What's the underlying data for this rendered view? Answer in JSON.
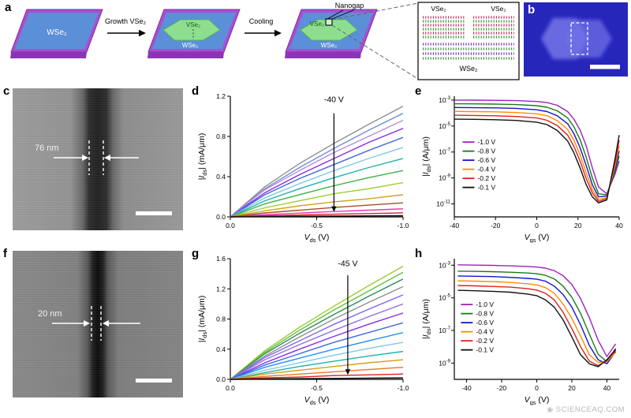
{
  "figure": {
    "panel_labels": {
      "a": "a",
      "b": "b",
      "c": "c",
      "d": "d",
      "e": "e",
      "f": "f",
      "g": "g",
      "h": "h"
    },
    "panel_a": {
      "substrate1": "WSe₂",
      "growth_arrow": "Growth VSe₂",
      "hex2_vse2": "VSe₂",
      "hex2_wse2": "WSe₂",
      "cooling_arrow": "Cooling",
      "nanogap": "Nanogap",
      "hex3_vse2": "VSe₂",
      "hex3_wse2": "WSe₂",
      "inset_vse2_left": "VSe₂",
      "inset_vse2_right": "VSe₂",
      "inset_wse2": "WSe₂"
    },
    "panel_c": {
      "measurement": "76 nm"
    },
    "panel_f": {
      "measurement": "20 nm"
    },
    "watermark": "SCIENCEAQ.COM"
  },
  "chart_data": [
    {
      "id": "d",
      "type": "line",
      "xlabel": {
        "pre": "V",
        "sub": "ds",
        "post": " (V)"
      },
      "ylabel": {
        "pre": "|I",
        "sub": "ds",
        "post": "| (mA/μm)"
      },
      "yscale": "linear",
      "xlim": [
        0,
        -1.0
      ],
      "ylim": [
        0,
        1.2
      ],
      "xticks": [
        0,
        -0.5,
        -1.0
      ],
      "xtick_labels": [
        "0.0",
        "-0.5",
        "-1.0"
      ],
      "yticks": [
        0,
        0.4,
        0.8,
        1.2
      ],
      "ytick_labels": [
        "0.0",
        "0.4",
        "0.8",
        "1.2"
      ],
      "x": [
        0,
        -0.2,
        -0.4,
        -0.6,
        -0.8,
        -1.0
      ],
      "series": [
        {
          "color": "#909090",
          "values": [
            0,
            0.3,
            0.53,
            0.73,
            0.92,
            1.1
          ]
        },
        {
          "color": "#6e8fd4",
          "values": [
            0,
            0.28,
            0.49,
            0.68,
            0.86,
            1.03
          ]
        },
        {
          "color": "#b48ce0",
          "values": [
            0,
            0.27,
            0.46,
            0.64,
            0.8,
            0.96
          ]
        },
        {
          "color": "#8a2be2",
          "values": [
            0,
            0.24,
            0.42,
            0.58,
            0.74,
            0.88
          ]
        },
        {
          "color": "#4169e1",
          "values": [
            0,
            0.22,
            0.38,
            0.52,
            0.66,
            0.79
          ]
        },
        {
          "color": "#7ec8e8",
          "values": [
            0,
            0.19,
            0.33,
            0.46,
            0.58,
            0.69
          ]
        },
        {
          "color": "#20b2aa",
          "values": [
            0,
            0.16,
            0.28,
            0.39,
            0.49,
            0.58
          ]
        },
        {
          "color": "#3cb043",
          "values": [
            0,
            0.13,
            0.22,
            0.31,
            0.39,
            0.46
          ]
        },
        {
          "color": "#9acd32",
          "values": [
            0,
            0.09,
            0.16,
            0.23,
            0.28,
            0.34
          ]
        },
        {
          "color": "#d4a017",
          "values": [
            0,
            0.06,
            0.11,
            0.15,
            0.18,
            0.22
          ]
        },
        {
          "color": "#a0522d",
          "values": [
            0,
            0.039,
            0.067,
            0.093,
            0.117,
            0.14
          ]
        },
        {
          "color": "#e838b8",
          "values": [
            0,
            0.022,
            0.038,
            0.053,
            0.067,
            0.08
          ]
        },
        {
          "color": "#e02020",
          "values": [
            0,
            0.011,
            0.019,
            0.027,
            0.033,
            0.04
          ]
        },
        {
          "color": "#111111",
          "values": [
            0,
            0.003,
            0.006,
            0.008,
            0.01,
            0.012
          ]
        }
      ],
      "annotation": {
        "text": "-40 V",
        "x": -0.6,
        "text_y": 1.14,
        "arrow_from": 1.03,
        "arrow_to": 0.05
      }
    },
    {
      "id": "e",
      "type": "line",
      "xlabel": {
        "pre": "V",
        "sub": "gs",
        "post": " (V)"
      },
      "ylabel": {
        "pre": "|I",
        "sub": "ds",
        "post": "| (A/μm)"
      },
      "yscale": "log",
      "xlim": [
        -40,
        40
      ],
      "ylim_exp": [
        -12,
        -2.7
      ],
      "xticks": [
        -40,
        -20,
        0,
        20,
        40
      ],
      "xtick_labels": [
        "-40",
        "-20",
        "0",
        "20",
        "40"
      ],
      "ytick_exps": [
        -3,
        -5,
        -7,
        -9,
        -11
      ],
      "x": [
        -40,
        -30,
        -20,
        -10,
        0,
        5,
        10,
        15,
        18,
        21,
        24,
        27,
        30,
        34,
        38,
        40
      ],
      "series": [
        {
          "label": "-1.0 V",
          "color": "#a020c0",
          "values": [
            0.001,
            0.00099,
            0.00096,
            0.00091,
            0.00078,
            0.00064,
            0.0004,
            0.00013,
            3.5e-05,
            5e-06,
            3e-07,
            6e-09,
            2e-10,
            6e-11,
            2e-09,
            2e-08
          ]
        },
        {
          "label": "-0.8 V",
          "color": "#1a7a1a",
          "values": [
            0.00052,
            0.00051,
            0.00049,
            0.00045,
            0.00037,
            0.00028,
            0.00015,
            4.2e-05,
            9e-06,
            9e-07,
            4e-08,
            1e-09,
            6e-11,
            5e-11,
            3e-09,
            5e-08
          ]
        },
        {
          "label": "-0.6 V",
          "color": "#1414cc",
          "values": [
            0.00027,
            0.00026,
            0.00025,
            0.00023,
            0.00018,
            0.00013,
            6.2e-05,
            1.5e-05,
            2.7e-06,
            2.2e-07,
            9e-09,
            3e-10,
            3.5e-11,
            4e-11,
            5e-09,
            1.2e-07
          ]
        },
        {
          "label": "-0.4 V",
          "color": "#ff8c00",
          "values": [
            0.000135,
            0.00013,
            0.000125,
            0.00011,
            8.8e-05,
            6.2e-05,
            2.6e-05,
            5.5e-06,
            8.5e-07,
            6.5e-08,
            2.5e-09,
            1.3e-10,
            2.2e-11,
            3e-11,
            8e-09,
            3e-07
          ]
        },
        {
          "label": "-0.2 V",
          "color": "#e02020",
          "values": [
            6.8e-05,
            6.6e-05,
            6.2e-05,
            5.5e-05,
            4.2e-05,
            2.8e-05,
            1.1e-05,
            2e-06,
            2.8e-07,
            2e-08,
            9e-10,
            7e-11,
            1.6e-11,
            2.5e-11,
            1.5e-08,
            8e-07
          ]
        },
        {
          "label": "-0.1 V",
          "color": "#111111",
          "values": [
            3.4e-05,
            3.3e-05,
            3.1e-05,
            2.7e-05,
            2e-05,
            1.3e-05,
            4.5e-06,
            7e-07,
            9e-08,
            6e-09,
            3e-10,
            3.5e-11,
            1.2e-11,
            2e-11,
            3e-08,
            2e-06
          ]
        }
      ],
      "legend": {
        "fx": 0.05,
        "fy": 0.38
      }
    },
    {
      "id": "g",
      "type": "line",
      "xlabel": {
        "pre": "V",
        "sub": "ds",
        "post": " (V)"
      },
      "ylabel": {
        "pre": "|I",
        "sub": "ds",
        "post": "| (mA/μm)"
      },
      "yscale": "linear",
      "xlim": [
        0,
        -1.0
      ],
      "ylim": [
        0,
        1.6
      ],
      "xticks": [
        0,
        -0.5,
        -1.0
      ],
      "xtick_labels": [
        "0.0",
        "-0.5",
        "-1.0"
      ],
      "yticks": [
        0,
        0.4,
        0.8,
        1.2,
        1.6
      ],
      "ytick_labels": [
        "0.0",
        "0.4",
        "0.8",
        "1.2",
        "1.6"
      ],
      "x": [
        0,
        -0.2,
        -0.4,
        -0.6,
        -0.8,
        -1.0
      ],
      "series": [
        {
          "color": "#9acd32",
          "values": [
            0,
            0.38,
            0.69,
            0.97,
            1.24,
            1.5
          ]
        },
        {
          "color": "#6abf3a",
          "values": [
            0,
            0.36,
            0.65,
            0.92,
            1.17,
            1.42
          ]
        },
        {
          "color": "#2e8b57",
          "values": [
            0,
            0.34,
            0.61,
            0.86,
            1.1,
            1.33
          ]
        },
        {
          "color": "#909090",
          "values": [
            0,
            0.31,
            0.56,
            0.8,
            1.02,
            1.23
          ]
        },
        {
          "color": "#7b68ee",
          "values": [
            0,
            0.29,
            0.51,
            0.73,
            0.93,
            1.12
          ]
        },
        {
          "color": "#9370db",
          "values": [
            0,
            0.26,
            0.46,
            0.65,
            0.83,
            1.0
          ]
        },
        {
          "color": "#8a2be2",
          "values": [
            0,
            0.22,
            0.4,
            0.57,
            0.73,
            0.88
          ]
        },
        {
          "color": "#4169e1",
          "values": [
            0,
            0.19,
            0.34,
            0.49,
            0.62,
            0.75
          ]
        },
        {
          "color": "#1e90ff",
          "values": [
            0,
            0.16,
            0.28,
            0.4,
            0.51,
            0.62
          ]
        },
        {
          "color": "#7ec8e8",
          "values": [
            0,
            0.12,
            0.22,
            0.32,
            0.41,
            0.49
          ]
        },
        {
          "color": "#20b2aa",
          "values": [
            0,
            0.09,
            0.17,
            0.24,
            0.31,
            0.37
          ]
        },
        {
          "color": "#d4a017",
          "values": [
            0,
            0.07,
            0.12,
            0.17,
            0.22,
            0.26
          ]
        },
        {
          "color": "#e87820",
          "values": [
            0,
            0.04,
            0.07,
            0.1,
            0.13,
            0.16
          ]
        },
        {
          "color": "#e02020",
          "values": [
            0,
            0.02,
            0.03,
            0.05,
            0.06,
            0.07
          ]
        },
        {
          "color": "#111111",
          "values": [
            0,
            0.005,
            0.009,
            0.013,
            0.017,
            0.02
          ]
        }
      ],
      "annotation": {
        "text": "-45 V",
        "x": -0.68,
        "text_y": 1.5,
        "arrow_from": 1.38,
        "arrow_to": 0.06
      }
    },
    {
      "id": "h",
      "type": "line",
      "xlabel": {
        "pre": "V",
        "sub": "gs",
        "post": " (V)"
      },
      "ylabel": {
        "pre": "|I",
        "sub": "ds",
        "post": "| (A/μm)"
      },
      "yscale": "log",
      "xlim": [
        -47,
        47
      ],
      "ylim_exp": [
        -10,
        -2.6
      ],
      "xticks": [
        -40,
        -20,
        0,
        20,
        40
      ],
      "xtick_labels": [
        "-40",
        "-20",
        "0",
        "20",
        "40"
      ],
      "ytick_exps": [
        -3,
        -5,
        -7,
        -9
      ],
      "x": [
        -45,
        -35,
        -25,
        -15,
        -5,
        0,
        5,
        10,
        15,
        20,
        25,
        30,
        35,
        40,
        45
      ],
      "series": [
        {
          "label": "-1.0 V",
          "color": "#a020c0",
          "values": [
            0.00105,
            0.00101,
            0.00097,
            0.00091,
            0.00083,
            0.00077,
            0.00066,
            0.00046,
            0.00023,
            6.5e-05,
            9e-06,
            6e-07,
            2.5e-08,
            2.5e-09,
            1.5e-08
          ]
        },
        {
          "label": "-0.8 V",
          "color": "#1a7a1a",
          "values": [
            0.00043,
            0.00042,
            0.0004,
            0.00037,
            0.00033,
            0.0003,
            0.00024,
            0.000145,
            5.2e-05,
            1.1e-05,
            1.1e-06,
            6e-08,
            3.5e-09,
            1.2e-09,
            8e-09
          ]
        },
        {
          "label": "-0.6 V",
          "color": "#1414cc",
          "values": [
            0.00022,
            0.00021,
            0.0002,
            0.00018,
            0.000155,
            0.00014,
            0.000105,
            5.2e-05,
            1.6e-05,
            2.7e-06,
            2.2e-07,
            1.2e-08,
            1.6e-09,
            9e-10,
            5e-09
          ]
        },
        {
          "label": "-0.4 V",
          "color": "#ff8c00",
          "values": [
            0.00011,
            0.000105,
            9.8e-05,
            8.8e-05,
            7.2e-05,
            6.2e-05,
            4.2e-05,
            1.9e-05,
            4.2e-06,
            5.5e-07,
            4.5e-08,
            3.2e-09,
            1.1e-09,
            1.2e-09,
            4.5e-09
          ]
        },
        {
          "label": "-0.2 V",
          "color": "#e02020",
          "values": [
            5.7e-05,
            5.4e-05,
            5e-05,
            4.5e-05,
            3.6e-05,
            3e-05,
            1.9e-05,
            7.5e-06,
            1.3e-06,
            1.3e-07,
            1e-08,
            1.3e-09,
            7e-10,
            1.4e-09,
            6e-09
          ]
        },
        {
          "label": "-0.1 V",
          "color": "#111111",
          "values": [
            2.9e-05,
            2.7e-05,
            2.5e-05,
            2.2e-05,
            1.7e-05,
            1.35e-05,
            7.5e-06,
            2.7e-06,
            4.5e-07,
            4e-08,
            3.2e-09,
            9e-10,
            6e-10,
            1.6e-09,
            7e-09
          ]
        }
      ],
      "legend": {
        "fx": 0.04,
        "fy": 0.38
      }
    }
  ]
}
